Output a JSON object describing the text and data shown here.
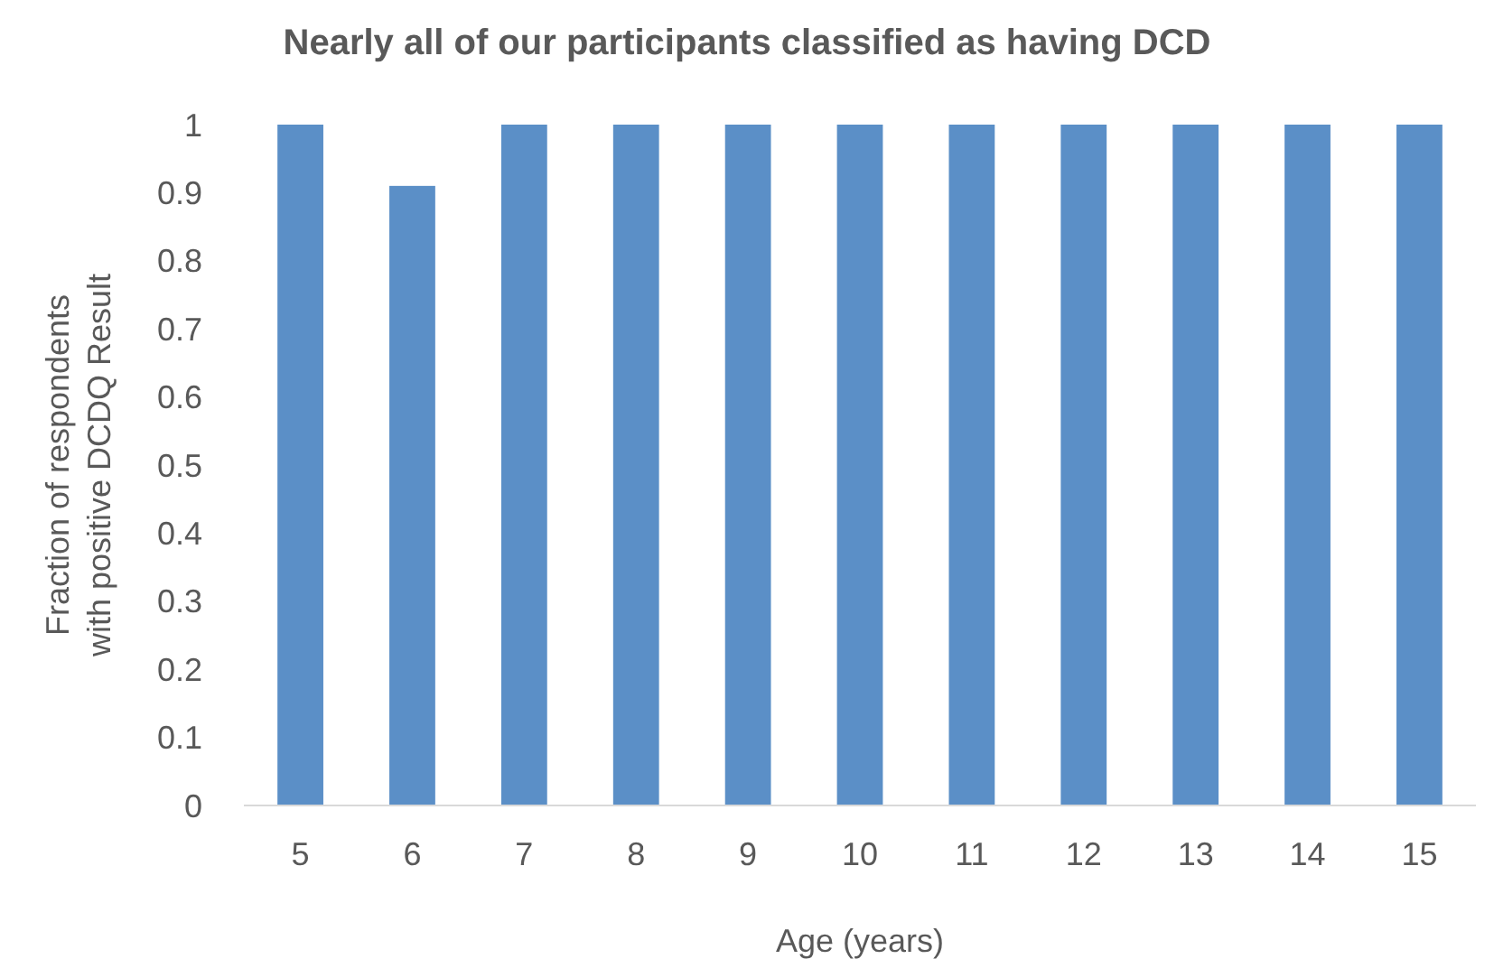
{
  "chart_data": {
    "type": "bar",
    "title": "Nearly all of our participants classified as having DCD",
    "xlabel": "Age (years)",
    "ylabel": "Fraction of respondents\nwith positive DCDQ Result",
    "categories": [
      "5",
      "6",
      "7",
      "8",
      "9",
      "10",
      "11",
      "12",
      "13",
      "14",
      "15"
    ],
    "values": [
      1,
      0.91,
      1,
      1,
      1,
      1,
      1,
      1,
      1,
      1,
      1
    ],
    "color": "#5b8fc7",
    "ylim": [
      0,
      1
    ],
    "yticks": [
      0,
      0.1,
      0.2,
      0.3,
      0.4,
      0.5,
      0.6,
      0.7,
      0.8,
      0.9,
      1
    ],
    "grid": false
  }
}
